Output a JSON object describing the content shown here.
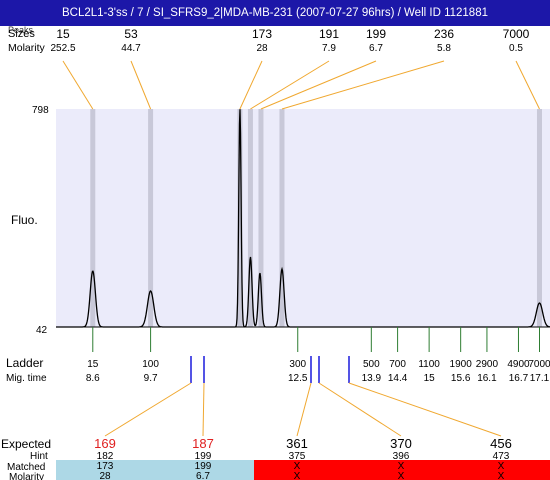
{
  "header": {
    "title": "BCL2L1-3'ss / 7 / SI_SFRS9_2|MDA-MB-231 (2007-07-27 96hrs) / Well ID 1121881",
    "row1_label": "Sizes",
    "row1_label_overlap": "Peaks",
    "row2_label": "Molarity"
  },
  "labels": {
    "ytop": "798",
    "ybottom": "42",
    "fluo": "Fluo.",
    "ladder": "Ladder",
    "migtime": "Mig. time",
    "expected": "Expected",
    "hint": "Hint",
    "matched": "Matched",
    "molarity": "Molarity"
  },
  "colors": {
    "title_bg": "#1c17a8",
    "plot_bg": "#ebebfa",
    "peak_band": "#c8c8d8",
    "trace": "#000000",
    "connector": "#f0a830",
    "ladder_tick": "#2e7d32",
    "marker": "#1a1adc",
    "expected_red": "#e02020",
    "matched_blue": "#add8e6",
    "matched_red": "#ff0000"
  },
  "chart_data": {
    "type": "line",
    "yrange": [
      42,
      798
    ],
    "peaks": [
      {
        "size": "15",
        "molarity": "252.5",
        "time": 8.6
      },
      {
        "size": "53",
        "molarity": "44.7",
        "time": 9.7
      },
      {
        "size": "173",
        "molarity": "28",
        "time": 11.4
      },
      {
        "size": "191",
        "molarity": "7.9",
        "time": 11.6
      },
      {
        "size": "199",
        "molarity": "6.7",
        "time": 11.8
      },
      {
        "size": "236",
        "molarity": "5.8",
        "time": 12.2
      },
      {
        "size": "7000",
        "molarity": "0.5",
        "time": 17.1
      }
    ],
    "ladder": [
      {
        "size": "15",
        "time": "8.6"
      },
      {
        "size": "100",
        "time": "9.7"
      },
      {
        "size": "300",
        "time": "12.5"
      },
      {
        "size": "500",
        "time": "13.9"
      },
      {
        "size": "700",
        "time": "14.4"
      },
      {
        "size": "1100",
        "time": "15"
      },
      {
        "size": "1900",
        "time": "15.6"
      },
      {
        "size": "2900",
        "time": "16.1"
      },
      {
        "size": "4900",
        "time": "16.7"
      },
      {
        "size": "7000",
        "time": "17.1"
      }
    ],
    "expected": [
      {
        "expected": "169",
        "hint": "182",
        "matched": "173",
        "molarity": "28",
        "status": "match"
      },
      {
        "expected": "187",
        "hint": "199",
        "matched": "199",
        "molarity": "6.7",
        "status": "match"
      },
      {
        "expected": "361",
        "hint": "375",
        "matched": "X",
        "molarity": "X",
        "status": "miss"
      },
      {
        "expected": "370",
        "hint": "396",
        "matched": "X",
        "molarity": "X",
        "status": "miss"
      },
      {
        "expected": "456",
        "hint": "473",
        "matched": "X",
        "molarity": "X",
        "status": "miss"
      }
    ]
  }
}
